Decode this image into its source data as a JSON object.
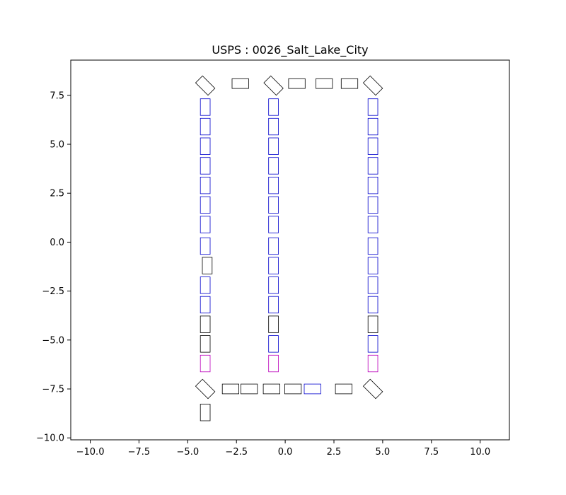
{
  "chart_data": {
    "type": "scatter",
    "title": "USPS : 0026_Salt_Lake_City",
    "xlabel": "",
    "ylabel": "",
    "xlim": [
      -11.0,
      11.5
    ],
    "ylim": [
      -10.1,
      9.3
    ],
    "x_ticks": [
      -10.0,
      -7.5,
      -5.0,
      -2.5,
      0.0,
      2.5,
      5.0,
      7.5,
      10.0
    ],
    "x_tick_labels": [
      "−10.0",
      "−7.5",
      "−5.0",
      "−2.5",
      "0.0",
      "2.5",
      "5.0",
      "7.5",
      "10.0"
    ],
    "y_ticks": [
      -10.0,
      -7.5,
      -5.0,
      -2.5,
      0.0,
      2.5,
      5.0,
      7.5
    ],
    "y_tick_labels": [
      "−10.0",
      "−7.5",
      "−5.0",
      "−2.5",
      "0.0",
      "2.5",
      "5.0",
      "7.5"
    ],
    "grid": false,
    "legend": null,
    "colors": {
      "black": "#000000",
      "blue": "#0000cc",
      "purple": "#bb00bb"
    },
    "series": [
      {
        "color": "black",
        "points": [
          {
            "x": -4.1,
            "y": 8.0,
            "w": 0.9,
            "h": 0.5,
            "rot": 45
          },
          {
            "x": -2.3,
            "y": 8.1,
            "w": 0.85,
            "h": 0.5,
            "rot": 0
          },
          {
            "x": -0.6,
            "y": 8.0,
            "w": 0.9,
            "h": 0.5,
            "rot": 45
          },
          {
            "x": 0.6,
            "y": 8.1,
            "w": 0.85,
            "h": 0.5,
            "rot": 0
          },
          {
            "x": 2.0,
            "y": 8.1,
            "w": 0.85,
            "h": 0.5,
            "rot": 0
          },
          {
            "x": 3.3,
            "y": 8.1,
            "w": 0.85,
            "h": 0.5,
            "rot": 0
          },
          {
            "x": 4.5,
            "y": 8.0,
            "w": 0.9,
            "h": 0.5,
            "rot": 45
          },
          {
            "x": -4.0,
            "y": -1.2,
            "w": 0.5,
            "h": 0.85,
            "rot": 0
          },
          {
            "x": -4.1,
            "y": -4.2,
            "w": 0.5,
            "h": 0.85,
            "rot": 0
          },
          {
            "x": -4.1,
            "y": -5.2,
            "w": 0.5,
            "h": 0.85,
            "rot": 0
          },
          {
            "x": -0.6,
            "y": -4.2,
            "w": 0.5,
            "h": 0.85,
            "rot": 0
          },
          {
            "x": 4.5,
            "y": -4.2,
            "w": 0.5,
            "h": 0.85,
            "rot": 0
          },
          {
            "x": -4.1,
            "y": -7.5,
            "w": 0.9,
            "h": 0.5,
            "rot": 45
          },
          {
            "x": -2.8,
            "y": -7.5,
            "w": 0.85,
            "h": 0.5,
            "rot": 0
          },
          {
            "x": -1.85,
            "y": -7.5,
            "w": 0.85,
            "h": 0.5,
            "rot": 0
          },
          {
            "x": -0.7,
            "y": -7.5,
            "w": 0.85,
            "h": 0.5,
            "rot": 0
          },
          {
            "x": 0.4,
            "y": -7.5,
            "w": 0.85,
            "h": 0.5,
            "rot": 0
          },
          {
            "x": 3.0,
            "y": -7.5,
            "w": 0.85,
            "h": 0.5,
            "rot": 0
          },
          {
            "x": 4.5,
            "y": -7.5,
            "w": 0.9,
            "h": 0.5,
            "rot": 45
          },
          {
            "x": -4.1,
            "y": -8.7,
            "w": 0.5,
            "h": 0.85,
            "rot": 0
          }
        ]
      },
      {
        "color": "blue",
        "points": [
          {
            "x": -4.1,
            "y": 6.9,
            "w": 0.5,
            "h": 0.85,
            "rot": 0
          },
          {
            "x": -4.1,
            "y": 5.9,
            "w": 0.5,
            "h": 0.85,
            "rot": 0
          },
          {
            "x": -4.1,
            "y": 4.9,
            "w": 0.5,
            "h": 0.85,
            "rot": 0
          },
          {
            "x": -4.1,
            "y": 3.9,
            "w": 0.5,
            "h": 0.85,
            "rot": 0
          },
          {
            "x": -4.1,
            "y": 2.9,
            "w": 0.5,
            "h": 0.85,
            "rot": 0
          },
          {
            "x": -4.1,
            "y": 1.9,
            "w": 0.5,
            "h": 0.85,
            "rot": 0
          },
          {
            "x": -4.1,
            "y": 0.9,
            "w": 0.5,
            "h": 0.85,
            "rot": 0
          },
          {
            "x": -4.1,
            "y": -0.2,
            "w": 0.5,
            "h": 0.85,
            "rot": 0
          },
          {
            "x": -4.1,
            "y": -2.2,
            "w": 0.5,
            "h": 0.85,
            "rot": 0
          },
          {
            "x": -4.1,
            "y": -3.2,
            "w": 0.5,
            "h": 0.85,
            "rot": 0
          },
          {
            "x": -0.6,
            "y": 6.9,
            "w": 0.5,
            "h": 0.85,
            "rot": 0
          },
          {
            "x": -0.6,
            "y": 5.9,
            "w": 0.5,
            "h": 0.85,
            "rot": 0
          },
          {
            "x": -0.6,
            "y": 4.9,
            "w": 0.5,
            "h": 0.85,
            "rot": 0
          },
          {
            "x": -0.6,
            "y": 3.9,
            "w": 0.5,
            "h": 0.85,
            "rot": 0
          },
          {
            "x": -0.6,
            "y": 2.9,
            "w": 0.5,
            "h": 0.85,
            "rot": 0
          },
          {
            "x": -0.6,
            "y": 1.9,
            "w": 0.5,
            "h": 0.85,
            "rot": 0
          },
          {
            "x": -0.6,
            "y": 0.9,
            "w": 0.5,
            "h": 0.85,
            "rot": 0
          },
          {
            "x": -0.6,
            "y": -0.2,
            "w": 0.5,
            "h": 0.85,
            "rot": 0
          },
          {
            "x": -0.6,
            "y": -1.2,
            "w": 0.5,
            "h": 0.85,
            "rot": 0
          },
          {
            "x": -0.6,
            "y": -2.2,
            "w": 0.5,
            "h": 0.85,
            "rot": 0
          },
          {
            "x": -0.6,
            "y": -3.2,
            "w": 0.5,
            "h": 0.85,
            "rot": 0
          },
          {
            "x": -0.6,
            "y": -5.2,
            "w": 0.5,
            "h": 0.85,
            "rot": 0
          },
          {
            "x": 4.5,
            "y": 6.9,
            "w": 0.5,
            "h": 0.85,
            "rot": 0
          },
          {
            "x": 4.5,
            "y": 5.9,
            "w": 0.5,
            "h": 0.85,
            "rot": 0
          },
          {
            "x": 4.5,
            "y": 4.9,
            "w": 0.5,
            "h": 0.85,
            "rot": 0
          },
          {
            "x": 4.5,
            "y": 3.9,
            "w": 0.5,
            "h": 0.85,
            "rot": 0
          },
          {
            "x": 4.5,
            "y": 2.9,
            "w": 0.5,
            "h": 0.85,
            "rot": 0
          },
          {
            "x": 4.5,
            "y": 1.9,
            "w": 0.5,
            "h": 0.85,
            "rot": 0
          },
          {
            "x": 4.5,
            "y": 0.9,
            "w": 0.5,
            "h": 0.85,
            "rot": 0
          },
          {
            "x": 4.5,
            "y": -0.2,
            "w": 0.5,
            "h": 0.85,
            "rot": 0
          },
          {
            "x": 4.5,
            "y": -1.2,
            "w": 0.5,
            "h": 0.85,
            "rot": 0
          },
          {
            "x": 4.5,
            "y": -2.2,
            "w": 0.5,
            "h": 0.85,
            "rot": 0
          },
          {
            "x": 4.5,
            "y": -3.2,
            "w": 0.5,
            "h": 0.85,
            "rot": 0
          },
          {
            "x": 4.5,
            "y": -5.2,
            "w": 0.5,
            "h": 0.85,
            "rot": 0
          },
          {
            "x": 1.4,
            "y": -7.5,
            "w": 0.85,
            "h": 0.5,
            "rot": 0
          }
        ]
      },
      {
        "color": "purple",
        "points": [
          {
            "x": -4.1,
            "y": -6.2,
            "w": 0.5,
            "h": 0.85,
            "rot": 0
          },
          {
            "x": -0.6,
            "y": -6.2,
            "w": 0.5,
            "h": 0.85,
            "rot": 0
          },
          {
            "x": 4.5,
            "y": -6.2,
            "w": 0.5,
            "h": 0.85,
            "rot": 0
          }
        ]
      }
    ]
  }
}
